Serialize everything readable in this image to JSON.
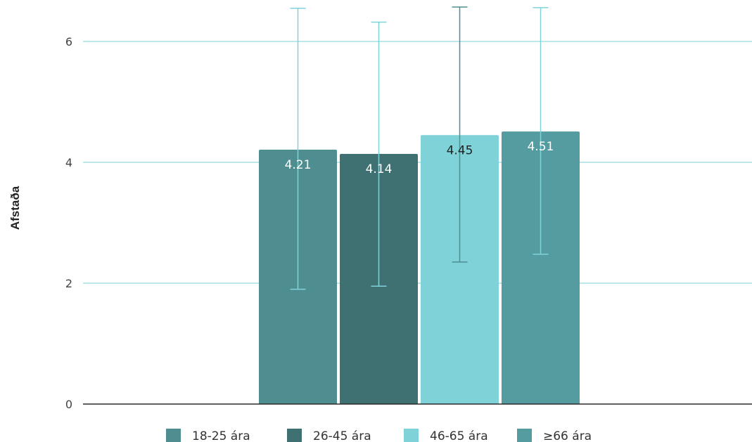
{
  "chart_data": {
    "type": "bar",
    "ylabel": "Afstaða",
    "ylim": [
      0,
      6.5
    ],
    "yticks": [
      0,
      2,
      4,
      6
    ],
    "grid": true,
    "legend_position": "bottom",
    "series": [
      {
        "name": "18-25 ára",
        "value": 4.21,
        "label": "4.21",
        "error_low": 1.9,
        "error_high": 6.55,
        "color": "#4e8e91",
        "errorbar_color": "#7fd3d8",
        "label_color": "#ffffff"
      },
      {
        "name": "26-45 ára",
        "value": 4.14,
        "label": "4.14",
        "error_low": 1.95,
        "error_high": 6.32,
        "color": "#3f7173",
        "errorbar_color": "#7fd3d8",
        "label_color": "#ffffff"
      },
      {
        "name": "46-65 ára",
        "value": 4.45,
        "label": "4.45",
        "error_low": 2.35,
        "error_high": 6.57,
        "color": "#7fd3d8",
        "errorbar_color": "#4e8e91",
        "label_color": "#222222"
      },
      {
        "name": "≥66 ára",
        "value": 4.51,
        "label": "4.51",
        "error_low": 2.48,
        "error_high": 6.56,
        "color": "#549ca0",
        "errorbar_color": "#7fd3d8",
        "label_color": "#ffffff"
      }
    ],
    "colors": {
      "gridline": "#a8dfe3",
      "axis": "#2b2b2b"
    }
  }
}
